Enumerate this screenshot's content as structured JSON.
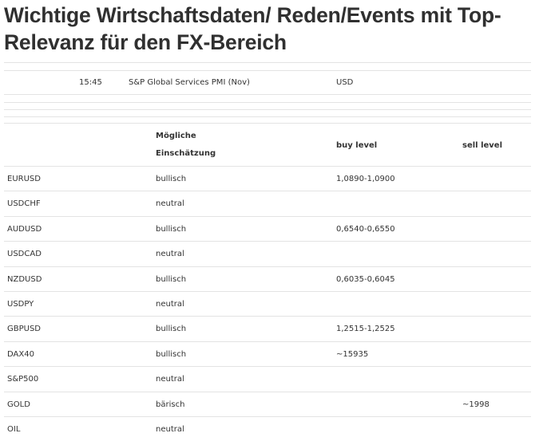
{
  "title": "Wichtige Wirtschaftsdaten/ Reden/Events mit Top-Relevanz für den FX-Bereich",
  "events": [
    {
      "time": "15:45",
      "event": "S&P Global Services PMI (Nov)",
      "currency": "USD"
    }
  ],
  "table": {
    "headers": {
      "instrument": "",
      "assessment": "Mögliche Einschätzung",
      "buy": "buy level",
      "sell": "sell level"
    },
    "rows": [
      {
        "instrument": "EURUSD",
        "assessment": "bullisch",
        "buy": "1,0890-1,0900",
        "sell": ""
      },
      {
        "instrument": "USDCHF",
        "assessment": "neutral",
        "buy": "",
        "sell": ""
      },
      {
        "instrument": "AUDUSD",
        "assessment": "bullisch",
        "buy": "0,6540-0,6550",
        "sell": ""
      },
      {
        "instrument": "USDCAD",
        "assessment": "neutral",
        "buy": "",
        "sell": ""
      },
      {
        "instrument": "NZDUSD",
        "assessment": "bullisch",
        "buy": "0,6035-0,6045",
        "sell": ""
      },
      {
        "instrument": "USDPY",
        "assessment": "neutral",
        "buy": "",
        "sell": ""
      },
      {
        "instrument": "GBPUSD",
        "assessment": "bullisch",
        "buy": "1,2515-1,2525",
        "sell": ""
      },
      {
        "instrument": "DAX40",
        "assessment": "bullisch",
        "buy": "~15935",
        "sell": ""
      },
      {
        "instrument": "S&P500",
        "assessment": "neutral",
        "buy": "",
        "sell": ""
      },
      {
        "instrument": "GOLD",
        "assessment": "bärisch",
        "buy": "",
        "sell": "~1998"
      },
      {
        "instrument": "OIL",
        "assessment": "neutral",
        "buy": "",
        "sell": ""
      }
    ]
  }
}
